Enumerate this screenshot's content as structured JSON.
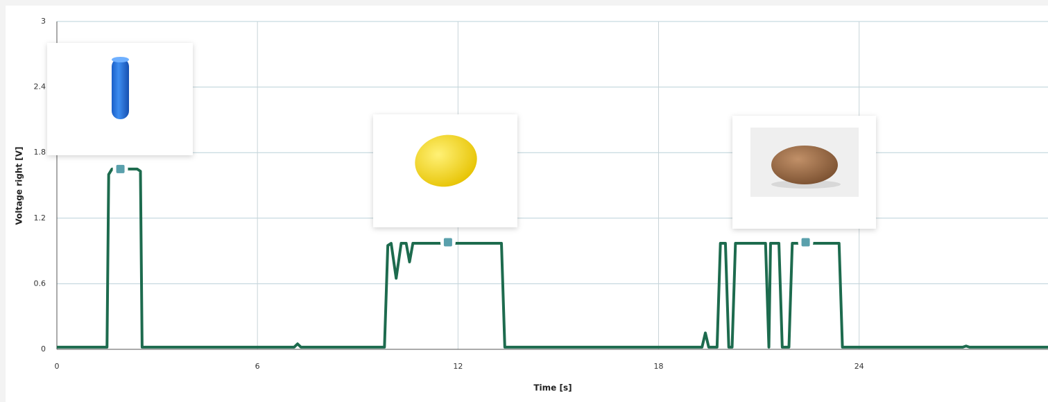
{
  "chart_data": {
    "type": "line",
    "x_label": "Time [s]",
    "y_label": "Voltage right [V]",
    "x": [
      0,
      1.5,
      1.55,
      1.65,
      2.4,
      2.5,
      2.55,
      7.1,
      7.2,
      7.3,
      9.8,
      9.9,
      10.0,
      10.15,
      10.3,
      10.45,
      10.55,
      10.65,
      13.3,
      13.4,
      19.3,
      19.4,
      19.5,
      19.75,
      19.85,
      20.0,
      20.1,
      20.2,
      20.3,
      21.2,
      21.3,
      21.35,
      21.6,
      21.7,
      21.9,
      22.0,
      23.4,
      23.5,
      27.1,
      27.2,
      27.3,
      29.65
    ],
    "values": [
      0.02,
      0.02,
      1.6,
      1.65,
      1.65,
      1.63,
      0.02,
      0.02,
      0.05,
      0.02,
      0.02,
      0.95,
      0.97,
      0.65,
      0.97,
      0.97,
      0.8,
      0.97,
      0.97,
      0.02,
      0.02,
      0.15,
      0.02,
      0.02,
      0.97,
      0.97,
      0.02,
      0.02,
      0.97,
      0.97,
      0.02,
      0.97,
      0.97,
      0.02,
      0.02,
      0.97,
      0.97,
      0.02,
      0.02,
      0.03,
      0.02,
      0.02
    ],
    "color": "#1d6b4e",
    "highlights": [
      {
        "x": 1.9,
        "y": 1.65
      },
      {
        "x": 11.7,
        "y": 0.98
      },
      {
        "x": 22.4,
        "y": 0.98
      }
    ],
    "xlim": [
      0,
      29.65
    ],
    "ylim": [
      0,
      3
    ],
    "xticks": [
      0,
      6,
      12,
      18,
      24
    ],
    "yticks": [
      0,
      0.6,
      1.2,
      1.8,
      2.4,
      3
    ],
    "grid": true
  }
}
